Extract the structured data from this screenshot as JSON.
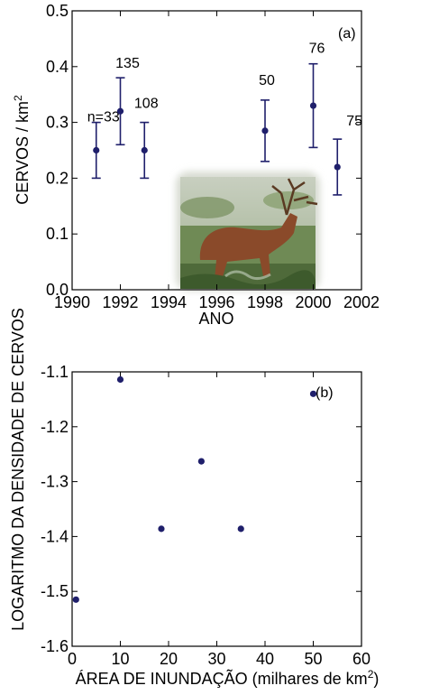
{
  "chart_data": [
    {
      "panel_label": "(a)",
      "type": "scatter",
      "error_bars": true,
      "xlabel": "ANO",
      "ylabel_main": "CERVOS / km",
      "ylabel_sup": "2",
      "xlim": [
        1990,
        2002
      ],
      "ylim": [
        0,
        0.5
      ],
      "x_ticks": [
        "1990",
        "1992",
        "1994",
        "1996",
        "1998",
        "2000",
        "2002"
      ],
      "y_ticks": [
        "0.0",
        "0.1",
        "0.2",
        "0.3",
        "0.4",
        "0.5"
      ],
      "color": "#1f1f6b",
      "points": [
        {
          "x": 1991,
          "y": 0.25,
          "low": 0.2,
          "high": 0.3,
          "label": "n=33"
        },
        {
          "x": 1992,
          "y": 0.32,
          "low": 0.26,
          "high": 0.38,
          "label": "135"
        },
        {
          "x": 1993,
          "y": 0.25,
          "low": 0.2,
          "high": 0.3,
          "label": "108"
        },
        {
          "x": 1998,
          "y": 0.285,
          "low": 0.23,
          "high": 0.34,
          "label": "50"
        },
        {
          "x": 2000,
          "y": 0.33,
          "low": 0.255,
          "high": 0.405,
          "label": "76"
        },
        {
          "x": 2001,
          "y": 0.22,
          "low": 0.17,
          "high": 0.27,
          "label": "75"
        }
      ],
      "inset_image": "deer-photo"
    },
    {
      "panel_label": "(b)",
      "type": "scatter",
      "xlabel_main": "ÁREA DE INUNDAÇÃO (milhares de km",
      "xlabel_sup": "2",
      "xlabel_end": ")",
      "ylabel": "LOGARITMO DA DENSIDADE DE CERVOS",
      "xlim": [
        0,
        60
      ],
      "ylim": [
        -1.6,
        -1.1
      ],
      "x_ticks": [
        "0",
        "10",
        "20",
        "30",
        "40",
        "50",
        "60"
      ],
      "y_ticks": [
        "-1.6",
        "-1.5",
        "-1.4",
        "-1.3",
        "-1.2",
        "-1.1"
      ],
      "color": "#1f1f6b",
      "points": [
        {
          "x": 0.8,
          "y": -1.515
        },
        {
          "x": 10,
          "y": -1.114
        },
        {
          "x": 18.5,
          "y": -1.386
        },
        {
          "x": 26.8,
          "y": -1.263
        },
        {
          "x": 35,
          "y": -1.386
        },
        {
          "x": 50,
          "y": -1.14
        }
      ]
    }
  ]
}
